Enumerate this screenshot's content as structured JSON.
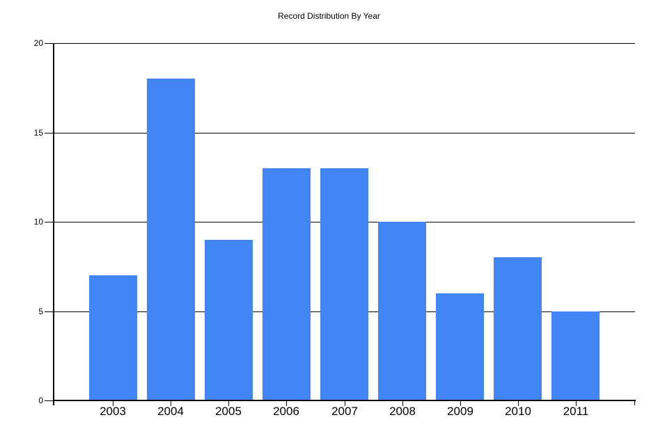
{
  "chart_data": {
    "type": "bar",
    "title": "Record Distribution By Year",
    "categories": [
      "2003",
      "2004",
      "2005",
      "2006",
      "2007",
      "2008",
      "2009",
      "2010",
      "2011"
    ],
    "values": [
      7,
      18,
      9,
      13,
      13,
      10,
      6,
      8,
      5
    ],
    "xlabel": "",
    "ylabel": "",
    "ylim": [
      0,
      20
    ],
    "yticks": [
      0,
      5,
      10,
      15,
      20
    ],
    "grid": true,
    "legend": false,
    "bar_color": "#4285F4",
    "axis_color": "#000000",
    "text_color": "#000000",
    "background_color": "#FFFFFF"
  }
}
